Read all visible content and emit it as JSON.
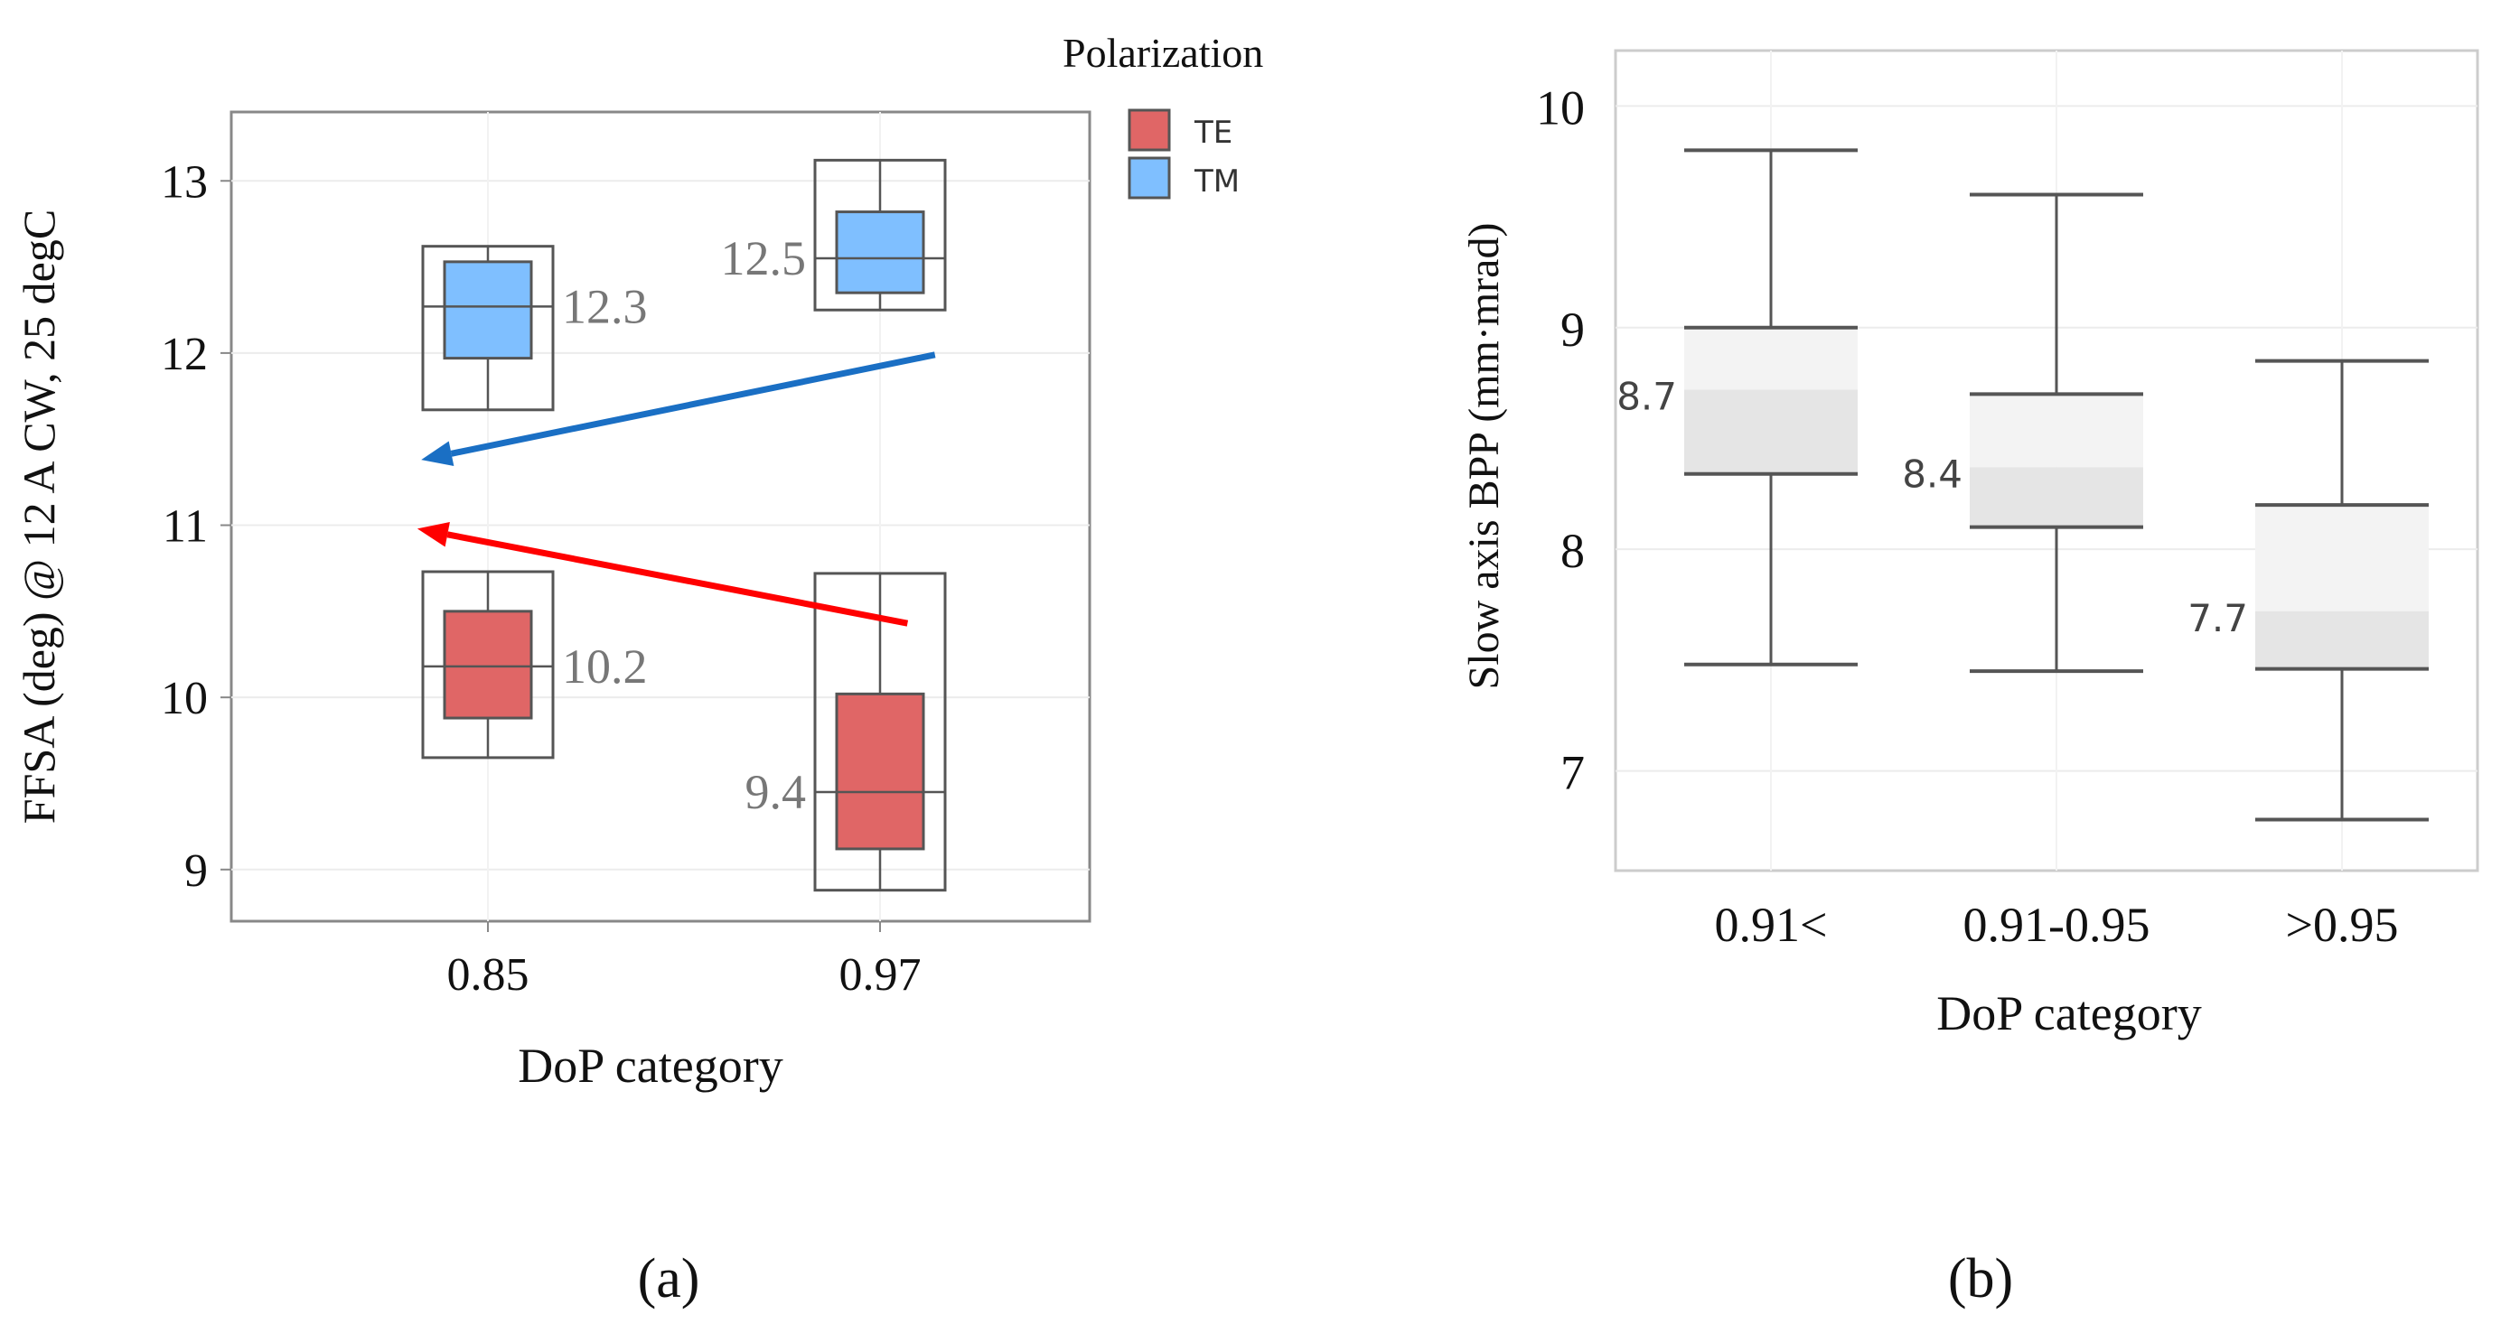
{
  "chart_data": [
    {
      "type": "box",
      "panel_label": "a",
      "xlabel": "DoP category",
      "ylabel": "FFSA (deg) @ 12 A CW, 25 degC",
      "ylim": [
        8.7,
        13.4
      ],
      "yticks": [
        "9",
        "10",
        "11",
        "12",
        "13"
      ],
      "categories": [
        "0.85",
        "0.97"
      ],
      "legend": {
        "title": "Polarization",
        "placement": "top-right-outside",
        "entries": [
          "TE",
          "TM"
        ]
      },
      "colors": {
        "TE": "#e06666",
        "TM": "#7fbfff",
        "arrow_TM": "#1a6fc4",
        "arrow_TE": "#ff0000",
        "label": "#777777"
      },
      "series": [
        {
          "name": "TE",
          "boxes": [
            {
              "category": "0.85",
              "whisker_low": 9.65,
              "q1": 9.88,
              "median": 10.18,
              "q3": 10.5,
              "whisker_high": 10.73,
              "label": "10.2"
            },
            {
              "category": "0.97",
              "whisker_low": 8.88,
              "q1": 9.12,
              "median": 9.45,
              "q3": 10.02,
              "whisker_high": 10.72,
              "label": "9.4"
            }
          ]
        },
        {
          "name": "TM",
          "boxes": [
            {
              "category": "0.85",
              "whisker_low": 11.67,
              "q1": 11.97,
              "median": 12.27,
              "q3": 12.53,
              "whisker_high": 12.62,
              "label": "12.3"
            },
            {
              "category": "0.97",
              "whisker_low": 12.25,
              "q1": 12.35,
              "median": 12.55,
              "q3": 12.82,
              "whisker_high": 13.12,
              "label": "12.5"
            }
          ]
        }
      ],
      "arrows": [
        {
          "series": "TM",
          "from": {
            "x": 1.14,
            "y": 11.99
          },
          "to": {
            "x": -0.17,
            "y": 11.38
          }
        },
        {
          "series": "TE",
          "from": {
            "x": 1.07,
            "y": 10.43
          },
          "to": {
            "x": -0.18,
            "y": 10.98
          }
        }
      ]
    },
    {
      "type": "box",
      "panel_label": "b",
      "xlabel": "DoP category",
      "ylabel": "Slow axis BPP (mm·mrad)",
      "ylim": [
        6.55,
        10.25
      ],
      "yticks": [
        "7",
        "8",
        "9",
        "10"
      ],
      "categories": [
        "0.91<",
        "0.91-0.95",
        ">0.95"
      ],
      "colors": {
        "box_light": "#f3f3f3",
        "box_dark": "#e5e5e5",
        "line": "#555555",
        "label": "#444444"
      },
      "boxes": [
        {
          "category": "0.91<",
          "whisker_low": 7.48,
          "q1": 8.34,
          "median": 8.72,
          "q3": 9.0,
          "whisker_high": 9.8,
          "label": "8.7"
        },
        {
          "category": "0.91-0.95",
          "whisker_low": 7.45,
          "q1": 8.1,
          "median": 8.37,
          "q3": 8.7,
          "whisker_high": 9.6,
          "label": "8.4"
        },
        {
          "category": ">0.95",
          "whisker_low": 6.78,
          "q1": 7.46,
          "median": 7.72,
          "q3": 8.2,
          "whisker_high": 8.85,
          "label": "7.7"
        }
      ]
    }
  ],
  "captions": [
    "(a)",
    "(b)"
  ]
}
